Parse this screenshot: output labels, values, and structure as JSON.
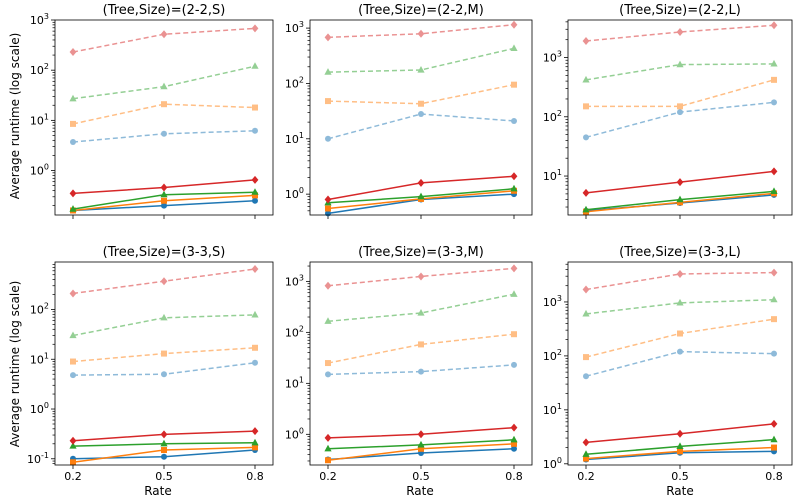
{
  "figure": {
    "ylabel": "Average runtime (log scale)",
    "xlabel": "Rate",
    "x_ticks": [
      "0.2",
      "0.5",
      "0.8"
    ]
  },
  "colors": {
    "blue": "#1f77b4",
    "orange": "#ff7f0e",
    "green": "#2ca02c",
    "red": "#d62728"
  },
  "chart_data": [
    {
      "type": "line",
      "title": "(Tree,Size)=(2-2,S)",
      "x": [
        0.2,
        0.5,
        0.8
      ],
      "ylim": [
        0.13,
        1000
      ],
      "yticks": [
        {
          "v": 1,
          "label": "10^0"
        },
        {
          "v": 10,
          "label": "10^1"
        },
        {
          "v": 100,
          "label": "10^2"
        },
        {
          "v": 1000,
          "label": "10^3"
        }
      ],
      "series": [
        {
          "color": "blue",
          "dashed": false,
          "marker": "circle",
          "values": [
            0.16,
            0.2,
            0.25
          ]
        },
        {
          "color": "orange",
          "dashed": false,
          "marker": "square",
          "values": [
            0.16,
            0.25,
            0.32
          ]
        },
        {
          "color": "green",
          "dashed": false,
          "marker": "triangle",
          "values": [
            0.17,
            0.33,
            0.37
          ]
        },
        {
          "color": "red",
          "dashed": false,
          "marker": "diamond",
          "values": [
            0.35,
            0.46,
            0.65
          ]
        },
        {
          "color": "blue",
          "dashed": true,
          "marker": "circle",
          "values": [
            3.7,
            5.4,
            6.2
          ]
        },
        {
          "color": "orange",
          "dashed": true,
          "marker": "square",
          "values": [
            8.5,
            21,
            18
          ]
        },
        {
          "color": "green",
          "dashed": true,
          "marker": "triangle",
          "values": [
            27,
            47,
            120
          ]
        },
        {
          "color": "red",
          "dashed": true,
          "marker": "diamond",
          "values": [
            230,
            520,
            680
          ]
        }
      ]
    },
    {
      "type": "line",
      "title": "(Tree,Size)=(2-2,M)",
      "x": [
        0.2,
        0.5,
        0.8
      ],
      "ylim": [
        0.42,
        1400
      ],
      "yticks": [
        {
          "v": 1,
          "label": "10^0"
        },
        {
          "v": 10,
          "label": "10^1"
        },
        {
          "v": 100,
          "label": "10^2"
        },
        {
          "v": 1000,
          "label": "10^3"
        }
      ],
      "series": [
        {
          "color": "blue",
          "dashed": false,
          "marker": "circle",
          "values": [
            0.45,
            0.8,
            1.0
          ]
        },
        {
          "color": "orange",
          "dashed": false,
          "marker": "square",
          "values": [
            0.55,
            0.82,
            1.15
          ]
        },
        {
          "color": "green",
          "dashed": false,
          "marker": "triangle",
          "values": [
            0.7,
            0.9,
            1.25
          ]
        },
        {
          "color": "red",
          "dashed": false,
          "marker": "diamond",
          "values": [
            0.8,
            1.6,
            2.1
          ]
        },
        {
          "color": "blue",
          "dashed": true,
          "marker": "circle",
          "values": [
            10,
            28,
            21
          ]
        },
        {
          "color": "orange",
          "dashed": true,
          "marker": "square",
          "values": [
            48,
            43,
            95
          ]
        },
        {
          "color": "green",
          "dashed": true,
          "marker": "triangle",
          "values": [
            160,
            175,
            430
          ]
        },
        {
          "color": "red",
          "dashed": true,
          "marker": "diamond",
          "values": [
            680,
            790,
            1150
          ]
        }
      ]
    },
    {
      "type": "line",
      "title": "(Tree,Size)=(2-2,L)",
      "x": [
        0.2,
        0.5,
        0.8
      ],
      "ylim": [
        2.2,
        4300
      ],
      "yticks": [
        {
          "v": 10,
          "label": "10^1"
        },
        {
          "v": 100,
          "label": "10^2"
        },
        {
          "v": 1000,
          "label": "10^3"
        }
      ],
      "series": [
        {
          "color": "blue",
          "dashed": false,
          "marker": "circle",
          "values": [
            2.6,
            3.5,
            4.8
          ]
        },
        {
          "color": "orange",
          "dashed": false,
          "marker": "square",
          "values": [
            2.5,
            3.6,
            5.1
          ]
        },
        {
          "color": "green",
          "dashed": false,
          "marker": "triangle",
          "values": [
            2.7,
            4.0,
            5.5
          ]
        },
        {
          "color": "red",
          "dashed": false,
          "marker": "diamond",
          "values": [
            5.2,
            7.9,
            12
          ]
        },
        {
          "color": "blue",
          "dashed": true,
          "marker": "circle",
          "values": [
            45,
            120,
            175
          ]
        },
        {
          "color": "orange",
          "dashed": true,
          "marker": "square",
          "values": [
            150,
            150,
            420
          ]
        },
        {
          "color": "green",
          "dashed": true,
          "marker": "triangle",
          "values": [
            420,
            760,
            780
          ]
        },
        {
          "color": "red",
          "dashed": true,
          "marker": "diamond",
          "values": [
            1900,
            2700,
            3500
          ]
        }
      ]
    },
    {
      "type": "line",
      "title": "(Tree,Size)=(3-3,S)",
      "x": [
        0.2,
        0.5,
        0.8
      ],
      "ylim": [
        0.075,
        900
      ],
      "yticks": [
        {
          "v": 0.1,
          "label": "10^-1"
        },
        {
          "v": 1,
          "label": "10^0"
        },
        {
          "v": 10,
          "label": "10^1"
        },
        {
          "v": 100,
          "label": "10^2"
        }
      ],
      "series": [
        {
          "color": "blue",
          "dashed": false,
          "marker": "circle",
          "values": [
            0.1,
            0.11,
            0.15
          ]
        },
        {
          "color": "orange",
          "dashed": false,
          "marker": "square",
          "values": [
            0.085,
            0.15,
            0.17
          ]
        },
        {
          "color": "green",
          "dashed": false,
          "marker": "triangle",
          "values": [
            0.18,
            0.2,
            0.21
          ]
        },
        {
          "color": "red",
          "dashed": false,
          "marker": "diamond",
          "values": [
            0.23,
            0.31,
            0.36
          ]
        },
        {
          "color": "blue",
          "dashed": true,
          "marker": "circle",
          "values": [
            4.8,
            5.0,
            8.5
          ]
        },
        {
          "color": "orange",
          "dashed": true,
          "marker": "square",
          "values": [
            9.0,
            13,
            17
          ]
        },
        {
          "color": "green",
          "dashed": true,
          "marker": "triangle",
          "values": [
            30,
            68,
            78
          ]
        },
        {
          "color": "red",
          "dashed": true,
          "marker": "diamond",
          "values": [
            210,
            370,
            650
          ]
        }
      ]
    },
    {
      "type": "line",
      "title": "(Tree,Size)=(3-3,M)",
      "x": [
        0.2,
        0.5,
        0.8
      ],
      "ylim": [
        0.25,
        2400
      ],
      "yticks": [
        {
          "v": 1,
          "label": "10^0"
        },
        {
          "v": 10,
          "label": "10^1"
        },
        {
          "v": 100,
          "label": "10^2"
        },
        {
          "v": 1000,
          "label": "10^3"
        }
      ],
      "series": [
        {
          "color": "blue",
          "dashed": false,
          "marker": "circle",
          "values": [
            0.32,
            0.43,
            0.52
          ]
        },
        {
          "color": "orange",
          "dashed": false,
          "marker": "square",
          "values": [
            0.31,
            0.52,
            0.65
          ]
        },
        {
          "color": "green",
          "dashed": false,
          "marker": "triangle",
          "values": [
            0.52,
            0.62,
            0.78
          ]
        },
        {
          "color": "red",
          "dashed": false,
          "marker": "diamond",
          "values": [
            0.85,
            1.0,
            1.35
          ]
        },
        {
          "color": "blue",
          "dashed": true,
          "marker": "circle",
          "values": [
            15,
            17,
            23
          ]
        },
        {
          "color": "orange",
          "dashed": true,
          "marker": "square",
          "values": [
            25,
            58,
            92
          ]
        },
        {
          "color": "green",
          "dashed": true,
          "marker": "triangle",
          "values": [
            165,
            240,
            560
          ]
        },
        {
          "color": "red",
          "dashed": true,
          "marker": "diamond",
          "values": [
            820,
            1250,
            1800
          ]
        }
      ]
    },
    {
      "type": "line",
      "title": "(Tree,Size)=(3-3,L)",
      "x": [
        0.2,
        0.5,
        0.8
      ],
      "ylim": [
        0.95,
        5500
      ],
      "yticks": [
        {
          "v": 1,
          "label": "10^0"
        },
        {
          "v": 10,
          "label": "10^1"
        },
        {
          "v": 100,
          "label": "10^2"
        },
        {
          "v": 1000,
          "label": "10^3"
        }
      ],
      "series": [
        {
          "color": "blue",
          "dashed": false,
          "marker": "circle",
          "values": [
            1.2,
            1.6,
            1.7
          ]
        },
        {
          "color": "orange",
          "dashed": false,
          "marker": "square",
          "values": [
            1.25,
            1.7,
            2.0
          ]
        },
        {
          "color": "green",
          "dashed": false,
          "marker": "triangle",
          "values": [
            1.5,
            2.1,
            2.8
          ]
        },
        {
          "color": "red",
          "dashed": false,
          "marker": "diamond",
          "values": [
            2.5,
            3.6,
            5.5
          ]
        },
        {
          "color": "blue",
          "dashed": true,
          "marker": "circle",
          "values": [
            42,
            120,
            110
          ]
        },
        {
          "color": "orange",
          "dashed": true,
          "marker": "square",
          "values": [
            95,
            260,
            480
          ]
        },
        {
          "color": "green",
          "dashed": true,
          "marker": "triangle",
          "values": [
            600,
            960,
            1100
          ]
        },
        {
          "color": "red",
          "dashed": true,
          "marker": "diamond",
          "values": [
            1700,
            3300,
            3500
          ]
        }
      ]
    }
  ]
}
